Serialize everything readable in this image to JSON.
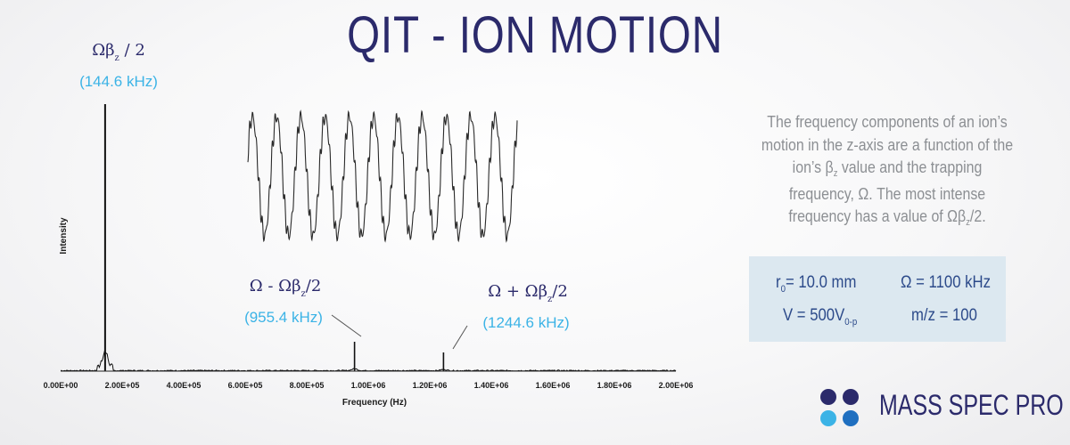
{
  "title": "QIT - ION MOTION",
  "description": {
    "line1": "The frequency components of an ion’s",
    "line2": "motion in the z-axis are a function of the",
    "line3_a": "ion’s β",
    "line3_sub": "z",
    "line3_b": " value and the trapping",
    "line4": "frequency, Ω. The most intense",
    "line5_a": "frequency has a value of Ωβ",
    "line5_sub": "z",
    "line5_b": "/2."
  },
  "parameters": {
    "r0_a": "r",
    "r0_sub": "0",
    "r0_b": "= 10.0 mm",
    "omega": "Ω = 1100 kHz",
    "v_a": "V = 500V",
    "v_sub": "0-p",
    "mz": "m/z = 100"
  },
  "logo": {
    "text": "MASS SPEC PRO",
    "dot_colors": [
      "#2b2a6b",
      "#2b2a6b",
      "#3bb3e6",
      "#1f6fc0"
    ]
  },
  "colors": {
    "title": "#2b2a6b",
    "accent": "#3bb3e6",
    "trace": "#111111"
  },
  "annotations": [
    {
      "sym_a": "Ωβ",
      "sym_sub": "z",
      "sym_b": " / 2",
      "value": "(144.6 kHz)"
    },
    {
      "sym_a": "Ω - Ωβ",
      "sym_sub": "z",
      "sym_b": "/2",
      "value": "(955.4 kHz)"
    },
    {
      "sym_a": "Ω + Ωβ",
      "sym_sub": "z",
      "sym_b": "/2",
      "value": "(1244.6 kHz)"
    }
  ],
  "chart_data": {
    "type": "line",
    "xlabel": "Frequency (Hz)",
    "ylabel": "Intensity",
    "xlim": [
      0,
      2000000
    ],
    "ylim": [
      0,
      1.0
    ],
    "x_ticks": [
      "0.00E+00",
      "2.00E+05",
      "4.00E+05",
      "6.00E+05",
      "8.00E+05",
      "1.00E+06",
      "1.20E+06",
      "1.40E+06",
      "1.60E+06",
      "1.80E+06",
      "2.00E+06"
    ],
    "grid": false,
    "peaks": [
      {
        "x": 144600,
        "y": 1.0
      },
      {
        "x": 955400,
        "y": 0.11
      },
      {
        "x": 1244600,
        "y": 0.07
      }
    ]
  }
}
